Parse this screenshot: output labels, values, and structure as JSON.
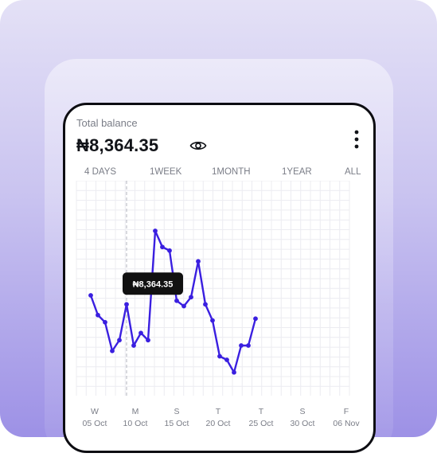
{
  "wallet": {
    "total_label": "Total balance",
    "balance": "₦8,364.35"
  },
  "icons": {
    "visibility": "eye-icon",
    "menu": "more-vertical-icon"
  },
  "range_tabs": [
    "4 DAYS",
    "1WEEK",
    "1MONTH",
    "1YEAR",
    "ALL"
  ],
  "colors": {
    "line": "#3a1fe0",
    "tooltip_bg": "#111111",
    "tooltip_text": "#ffffff"
  },
  "chart_data": {
    "type": "line",
    "x_ticks": [
      {
        "day": "W",
        "date": "05 Oct"
      },
      {
        "day": "M",
        "date": "10 Oct"
      },
      {
        "day": "S",
        "date": "15 Oct"
      },
      {
        "day": "T",
        "date": "20 Oct"
      },
      {
        "day": "T",
        "date": "25 Oct"
      },
      {
        "day": "S",
        "date": "30 Oct"
      },
      {
        "day": "F",
        "date": "06 Nov"
      }
    ],
    "values": [
      56,
      45,
      41,
      25,
      31,
      51,
      28,
      35,
      31,
      92,
      83,
      81,
      53,
      50,
      55,
      75,
      51,
      42,
      22,
      20,
      13,
      28,
      28,
      43
    ],
    "y_range": [
      0,
      120
    ],
    "highlight_index": 5,
    "tooltip_label": "₦8,364.35",
    "grid": true,
    "legend": "none"
  }
}
